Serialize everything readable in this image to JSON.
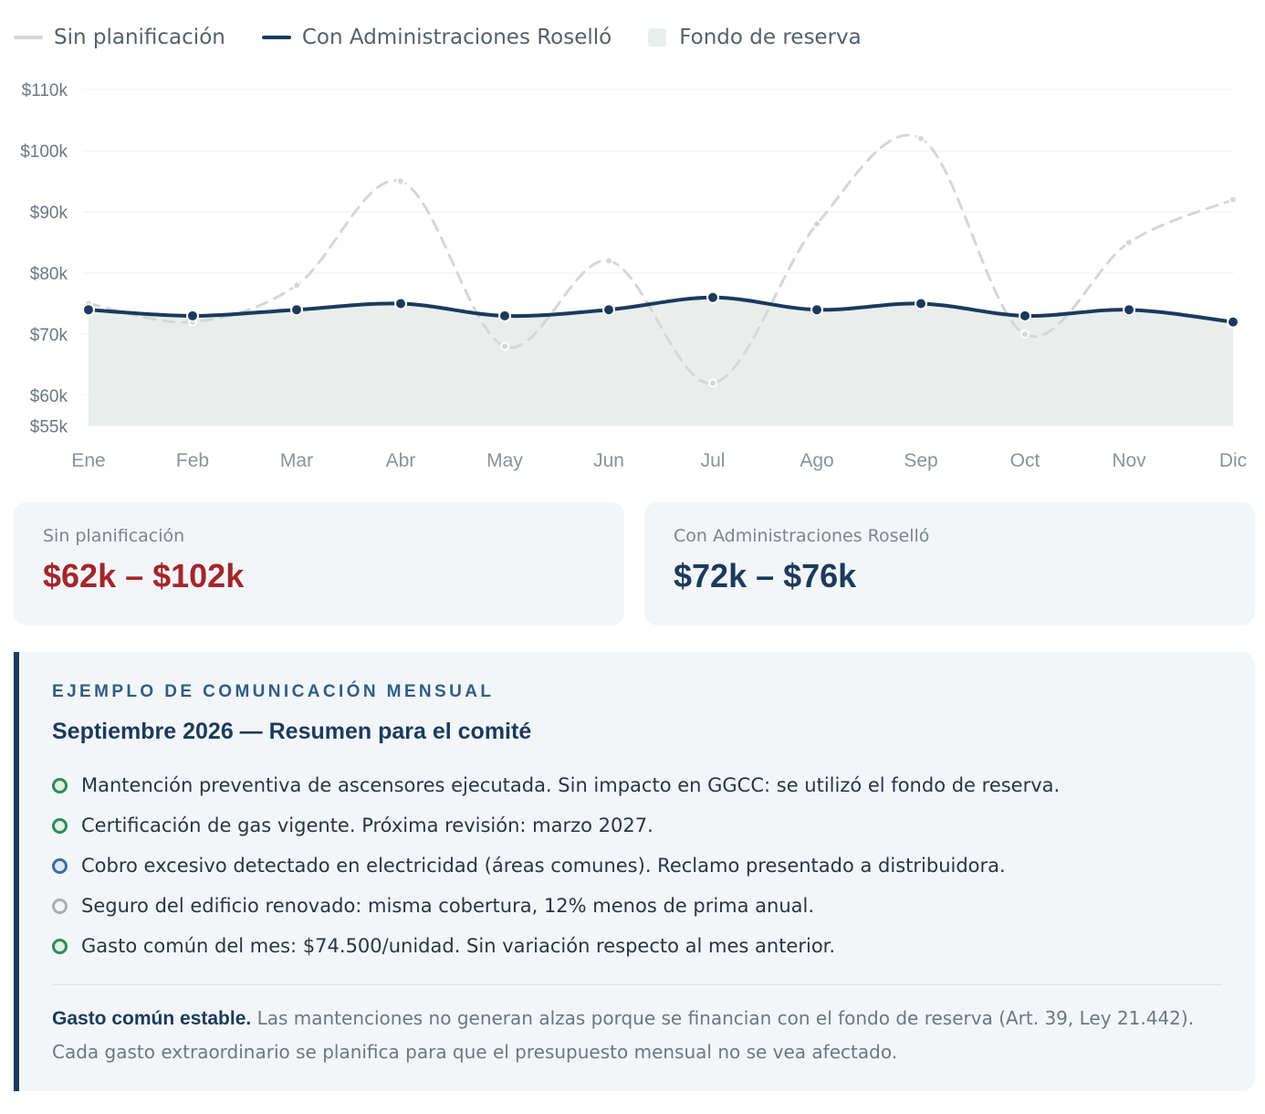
{
  "legend": [
    {
      "label": "Sin planificación",
      "kind": "line",
      "color": "#d6d6d6"
    },
    {
      "label": "Con Administraciones Roselló",
      "kind": "line",
      "color": "#1b3a5c"
    },
    {
      "label": "Fondo de reserva",
      "kind": "box",
      "color": "#e9eeec"
    }
  ],
  "chart_data": {
    "type": "line",
    "categories": [
      "Ene",
      "Feb",
      "Mar",
      "Abr",
      "May",
      "Jun",
      "Jul",
      "Ago",
      "Sep",
      "Oct",
      "Nov",
      "Dic"
    ],
    "series": [
      {
        "name": "Sin planificación",
        "values": [
          75,
          72,
          78,
          95,
          68,
          82,
          62,
          88,
          102,
          70,
          85,
          92
        ],
        "color": "#d6d6d6",
        "style": "dashed"
      },
      {
        "name": "Con Administraciones Roselló",
        "values": [
          74,
          73,
          74,
          75,
          73,
          74,
          76,
          74,
          75,
          73,
          74,
          72
        ],
        "color": "#1b3a5c",
        "style": "solid",
        "area": "Fondo de reserva"
      }
    ],
    "area_color": "#e9eeec",
    "ytick_values": [
      110,
      100,
      90,
      80,
      70,
      60,
      55
    ],
    "ytick_labels": [
      "$110k",
      "$100k",
      "$90k",
      "$80k",
      "$70k",
      "$60k",
      "$55k"
    ],
    "ylim": [
      55,
      110
    ],
    "grid": true
  },
  "cards": [
    {
      "label": "Sin planificación",
      "value": "$62k – $102k",
      "color": "#a3262b"
    },
    {
      "label": "Con Administraciones Roselló",
      "value": "$72k – $76k",
      "color": "#1b3a5c"
    }
  ],
  "note": {
    "eyebrow": "EJEMPLO DE COMUNICACIÓN MENSUAL",
    "title": "Septiembre 2026 — Resumen para el comité",
    "items": [
      {
        "text": "Mantención preventiva de ascensores ejecutada. Sin impacto en GGCC: se utilizó el fondo de reserva.",
        "color": "#2e8b57"
      },
      {
        "text": "Certificación de gas vigente. Próxima revisión: marzo 2027.",
        "color": "#2e8b57"
      },
      {
        "text": "Cobro excesivo detectado en electricidad (áreas comunes). Reclamo presentado a distribuidora.",
        "color": "#3a6ea5"
      },
      {
        "text": "Seguro del edificio renovado: misma cobertura, 12% menos de prima anual.",
        "color": "#a8aeb4"
      },
      {
        "text": "Gasto común del mes: $74.500/unidad. Sin variación respecto al mes anterior.",
        "color": "#2e8b57"
      }
    ],
    "summary_bold": "Gasto común estable.",
    "summary_text": " Las mantenciones no generan alzas porque se financian con el fondo de reserva (Art. 39, Ley 21.442). Cada gasto extraordinario se planifica para que el presupuesto mensual no se vea afectado."
  }
}
